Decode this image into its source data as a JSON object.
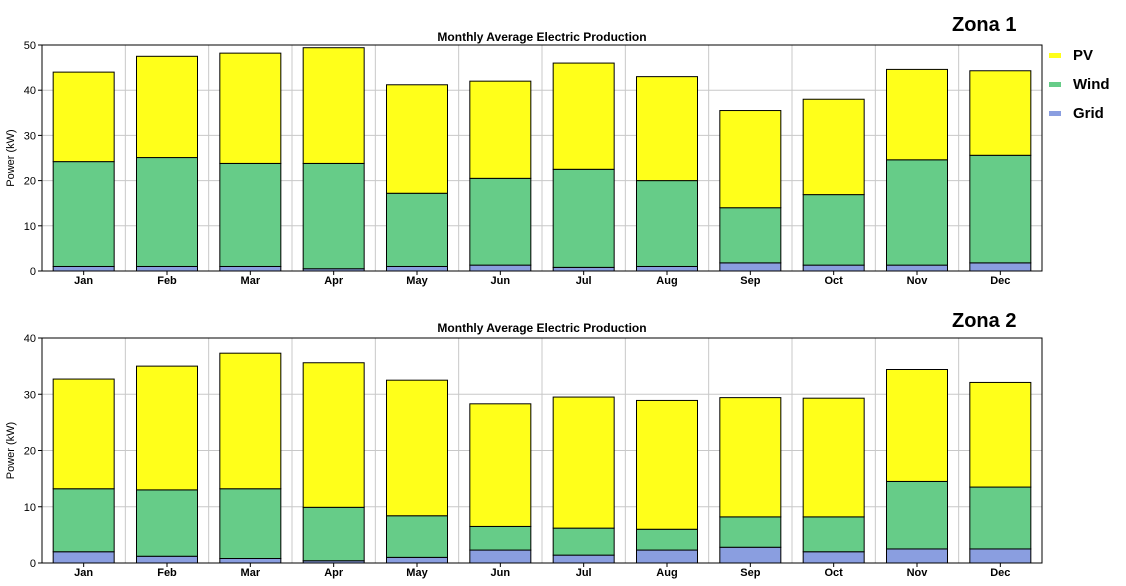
{
  "colors": {
    "PV": "#ffff1a",
    "Wind": "#66cc88",
    "Grid": "#8a9ee0",
    "grid_line": "#c8c8c8"
  },
  "legend": [
    {
      "name": "PV",
      "color": "#ffff1a"
    },
    {
      "name": "Wind",
      "color": "#66cc88"
    },
    {
      "name": "Grid",
      "color": "#8a9ee0"
    }
  ],
  "chart_data": [
    {
      "type": "bar",
      "stacked": true,
      "zone": "Zona 1",
      "title": "Monthly Average Electric Production",
      "ylabel": "Power (kW)",
      "xlabel": "",
      "ylim": [
        0,
        50
      ],
      "yticks": [
        0,
        10,
        20,
        30,
        40,
        50
      ],
      "grid": true,
      "legend_position": "right",
      "categories": [
        "Jan",
        "Feb",
        "Mar",
        "Apr",
        "May",
        "Jun",
        "Jul",
        "Aug",
        "Sep",
        "Oct",
        "Nov",
        "Dec"
      ],
      "series": [
        {
          "name": "Grid",
          "values": [
            1.0,
            1.0,
            1.0,
            0.5,
            1.0,
            1.3,
            0.8,
            1.0,
            1.8,
            1.3,
            1.3,
            1.8
          ]
        },
        {
          "name": "Wind",
          "values": [
            23.2,
            24.1,
            22.8,
            23.3,
            16.2,
            19.2,
            21.7,
            19.0,
            12.2,
            15.6,
            23.3,
            23.8
          ]
        },
        {
          "name": "PV",
          "values": [
            19.8,
            22.4,
            24.4,
            25.6,
            24.0,
            21.5,
            23.5,
            23.0,
            21.5,
            21.1,
            20.0,
            18.7
          ]
        }
      ]
    },
    {
      "type": "bar",
      "stacked": true,
      "zone": "Zona 2",
      "title": "Monthly Average Electric Production",
      "ylabel": "Power (kW)",
      "xlabel": "",
      "ylim": [
        0,
        40
      ],
      "yticks": [
        0,
        10,
        20,
        30,
        40
      ],
      "grid": true,
      "legend_position": "none",
      "categories": [
        "Jan",
        "Feb",
        "Mar",
        "Apr",
        "May",
        "Jun",
        "Jul",
        "Aug",
        "Sep",
        "Oct",
        "Nov",
        "Dec"
      ],
      "series": [
        {
          "name": "Grid",
          "values": [
            2.0,
            1.2,
            0.8,
            0.4,
            1.0,
            2.3,
            1.4,
            2.3,
            2.8,
            2.0,
            2.5,
            2.5
          ]
        },
        {
          "name": "Wind",
          "values": [
            11.2,
            11.8,
            12.4,
            9.5,
            7.4,
            4.2,
            4.8,
            3.7,
            5.4,
            6.2,
            12.0,
            11.0
          ]
        },
        {
          "name": "PV",
          "values": [
            19.5,
            22.0,
            24.1,
            25.7,
            24.1,
            21.8,
            23.3,
            22.9,
            21.2,
            21.1,
            19.9,
            18.6
          ]
        }
      ]
    }
  ]
}
